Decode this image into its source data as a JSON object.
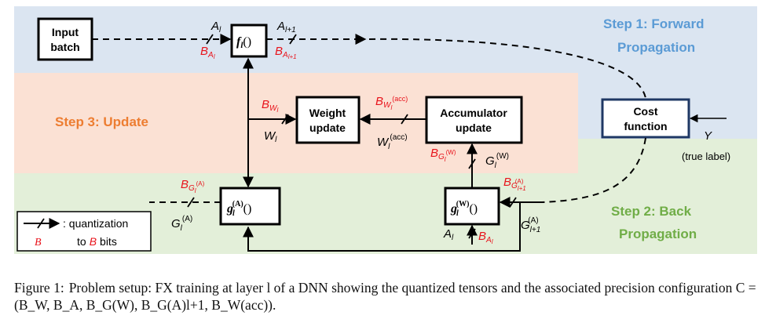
{
  "figure": {
    "steps": {
      "forward": [
        "Step 1: Forward",
        "Propagation"
      ],
      "update": "Step 3: Update",
      "back": [
        "Step 2: Back",
        "Propagation"
      ]
    },
    "boxes": {
      "input": [
        "Input",
        "batch"
      ],
      "f": "f",
      "f_sub": "l",
      "f_paren": "()",
      "weight": [
        "Weight",
        "update"
      ],
      "accum": [
        "Accumulator",
        "update"
      ],
      "cost": [
        "Cost",
        "function"
      ],
      "gA": "g",
      "gA_sub": "l",
      "gA_sup": "(A)",
      "gA_paren": "()",
      "gW": "g",
      "gW_sub": "l",
      "gW_sup": "(W)",
      "gW_paren": "()"
    },
    "labels": {
      "A": "A",
      "l": "l",
      "l1": "l+1",
      "B": "B",
      "W": "W",
      "G": "G",
      "Wsub": "W",
      "acc_sup": "(acc)",
      "A_sup": "(A)",
      "W_sup": "(W)",
      "Y": "Y",
      "true_label": "(true label)"
    },
    "legend": {
      "text1": ": quantization",
      "B": "B",
      "to": "to",
      "Bbits_B": "B",
      "bits": "bits"
    }
  },
  "caption": {
    "label": "Figure 1:",
    "text": "Problem setup: FX training at layer l of a DNN showing the quantized tensors and the associated precision configuration C",
    "equation": "= (B_W, B_A, B_G(W), B_G(A)l+1, B_W(acc))."
  },
  "colors": {
    "forward_bg": "#dbe5f1",
    "update_bg": "#fbe1d4",
    "back_bg": "#e3efd9",
    "forward_text": "#5b9bd5",
    "update_text": "#ed7d31",
    "back_text": "#70ad47",
    "precision_red": "#e8131b"
  }
}
